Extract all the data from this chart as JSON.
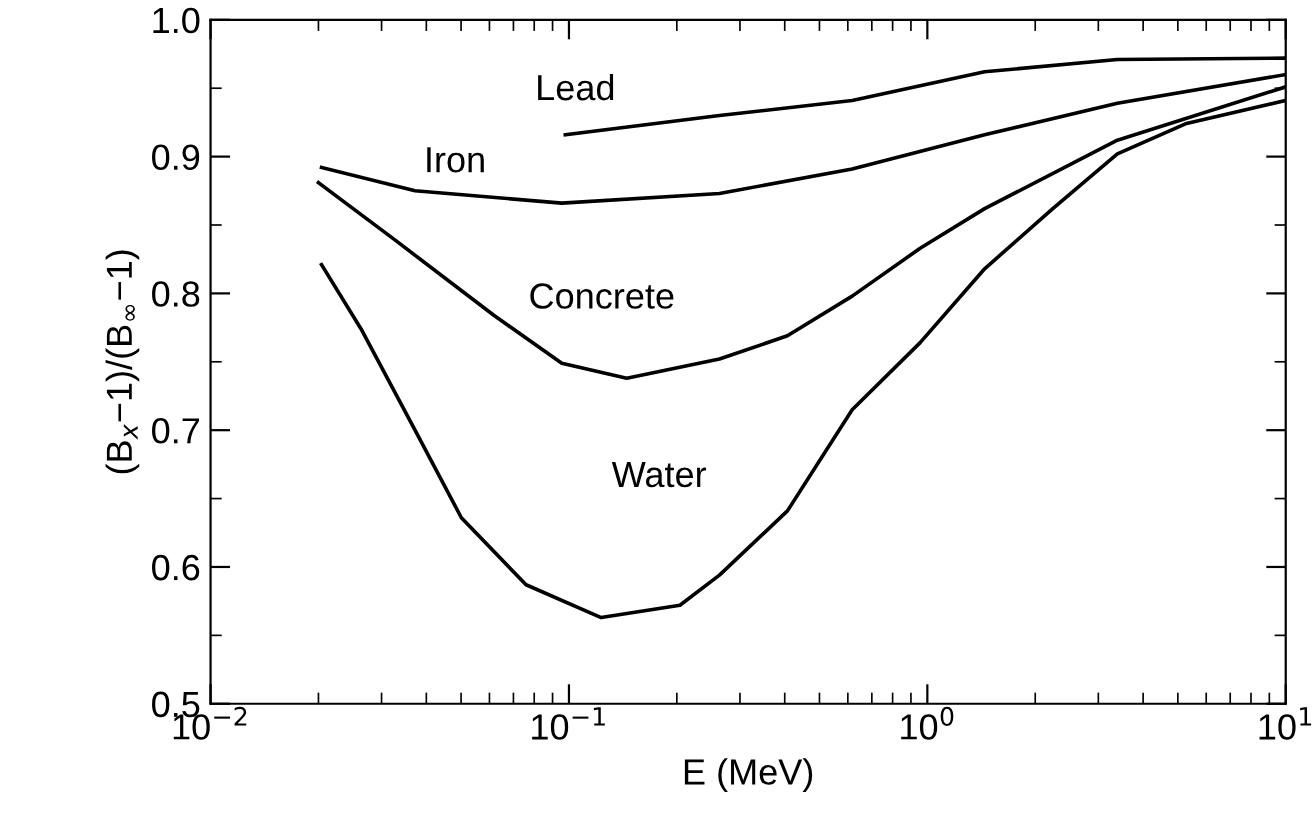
{
  "chart_data": {
    "type": "line",
    "xlabel": "E (MeV)",
    "ylabel": "(B$_{x}$−1)/(B$_{∞}$−1)",
    "log": "x",
    "xlim": [
      0.01,
      10
    ],
    "xticks": [
      {
        "value": 0.01,
        "label": "10$^{−2}$"
      },
      {
        "value": 0.1,
        "label": "10$^{−1}$"
      },
      {
        "value": 1,
        "label": "10$^{0}$"
      },
      {
        "value": 10,
        "label": "10$^{1}$"
      }
    ],
    "ylim": [
      0.5,
      1.0
    ],
    "yticks": [
      {
        "value": 0.5,
        "label": "0.5"
      },
      {
        "value": 0.6,
        "label": "0.6"
      },
      {
        "value": 0.7,
        "label": "0.7"
      },
      {
        "value": 0.8,
        "label": "0.8"
      },
      {
        "value": 0.9,
        "label": "0.9"
      },
      {
        "value": 1.0,
        "label": "1.0"
      }
    ],
    "grid": false,
    "marker": "none",
    "line_style": "solid",
    "series": [
      {
        "name": "Lead",
        "color": "#000000",
        "x": [
          0.0977,
          0.263,
          0.617,
          1.445,
          3.39,
          10
        ],
        "values": [
          0.916,
          0.93,
          0.941,
          0.962,
          0.971,
          0.972
        ]
      },
      {
        "name": "Iron",
        "color": "#000000",
        "x": [
          0.0204,
          0.0372,
          0.0955,
          0.263,
          0.617,
          1.445,
          3.39,
          10
        ],
        "values": [
          0.892,
          0.875,
          0.866,
          0.873,
          0.891,
          0.916,
          0.939,
          0.96
        ]
      },
      {
        "name": "Concrete",
        "color": "#000000",
        "x": [
          0.02,
          0.0331,
          0.0617,
          0.0955,
          0.145,
          0.263,
          0.407,
          0.617,
          0.955,
          1.445,
          3.39,
          10
        ],
        "values": [
          0.881,
          0.838,
          0.784,
          0.749,
          0.738,
          0.752,
          0.769,
          0.798,
          0.833,
          0.862,
          0.912,
          0.951
        ]
      },
      {
        "name": "Water",
        "color": "#000000",
        "x": [
          0.0204,
          0.0263,
          0.0372,
          0.0501,
          0.0759,
          0.123,
          0.204,
          0.263,
          0.407,
          0.617,
          0.955,
          1.445,
          2.239,
          3.39,
          5.25,
          10
        ],
        "values": [
          0.821,
          0.774,
          0.7,
          0.636,
          0.587,
          0.563,
          0.572,
          0.594,
          0.641,
          0.715,
          0.764,
          0.818,
          0.862,
          0.902,
          0.924,
          0.941
        ]
      }
    ]
  }
}
